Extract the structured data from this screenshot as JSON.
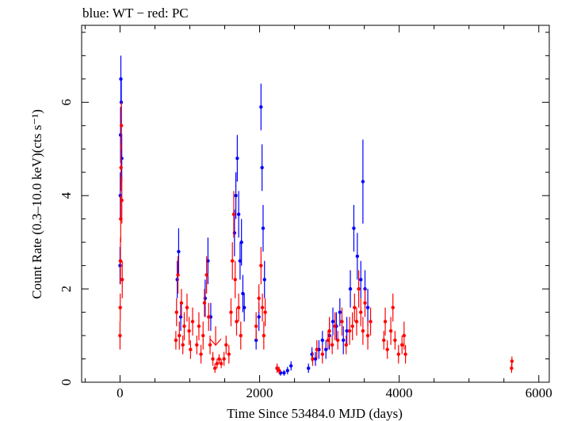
{
  "chart_data": {
    "type": "scatter",
    "title": "blue: WT − red: PC",
    "xlabel": "Time Since 53484.0 MJD (days)",
    "ylabel": "Count Rate (0.3–10.0 keV)(cts s⁻¹)",
    "xlim": [
      -550,
      6150
    ],
    "ylim": [
      0,
      7.65
    ],
    "x_ticks": [
      0,
      2000,
      4000,
      6000
    ],
    "y_ticks": [
      0,
      2,
      4,
      6
    ],
    "x_tick_labels": [
      "0",
      "2000",
      "4000",
      "6000"
    ],
    "y_tick_labels": [
      "0",
      "2",
      "4",
      "6"
    ],
    "grid": false,
    "legend": "none",
    "series": [
      {
        "name": "WT",
        "color": "#0000ff",
        "points": [
          [
            0,
            2.5,
            0.4
          ],
          [
            4,
            4.0,
            0.5
          ],
          [
            8,
            5.3,
            0.6
          ],
          [
            12,
            6.5,
            0.5
          ],
          [
            18,
            6.0,
            0.5
          ],
          [
            25,
            4.8,
            0.5
          ],
          [
            820,
            2.2,
            0.4
          ],
          [
            840,
            2.8,
            0.5
          ],
          [
            870,
            1.4,
            0.3
          ],
          [
            1220,
            1.8,
            0.4
          ],
          [
            1260,
            2.6,
            0.5
          ],
          [
            1300,
            1.4,
            0.3
          ],
          [
            1640,
            3.2,
            0.5
          ],
          [
            1660,
            4.0,
            0.5
          ],
          [
            1680,
            4.8,
            0.5
          ],
          [
            1700,
            3.6,
            0.5
          ],
          [
            1720,
            2.6,
            0.4
          ],
          [
            1740,
            3.0,
            0.5
          ],
          [
            1760,
            1.9,
            0.4
          ],
          [
            1780,
            1.6,
            0.3
          ],
          [
            1950,
            0.9,
            0.2
          ],
          [
            1990,
            1.4,
            0.3
          ],
          [
            2020,
            5.9,
            0.5
          ],
          [
            2035,
            4.6,
            0.5
          ],
          [
            2050,
            3.3,
            0.5
          ],
          [
            2070,
            2.2,
            0.4
          ],
          [
            2250,
            0.3,
            0.08
          ],
          [
            2300,
            0.2,
            0.06
          ],
          [
            2350,
            0.2,
            0.06
          ],
          [
            2400,
            0.25,
            0.08
          ],
          [
            2450,
            0.35,
            0.1
          ],
          [
            2700,
            0.3,
            0.1
          ],
          [
            2750,
            0.6,
            0.15
          ],
          [
            2800,
            0.5,
            0.15
          ],
          [
            2850,
            0.7,
            0.2
          ],
          [
            2900,
            0.9,
            0.2
          ],
          [
            2950,
            0.7,
            0.2
          ],
          [
            3000,
            1.0,
            0.3
          ],
          [
            3050,
            1.3,
            0.3
          ],
          [
            3100,
            1.2,
            0.3
          ],
          [
            3150,
            1.5,
            0.3
          ],
          [
            3200,
            0.9,
            0.3
          ],
          [
            3250,
            1.1,
            0.3
          ],
          [
            3300,
            2.0,
            0.4
          ],
          [
            3350,
            3.3,
            0.5
          ],
          [
            3400,
            2.7,
            0.5
          ],
          [
            3450,
            2.2,
            0.4
          ],
          [
            3480,
            4.3,
            0.9
          ],
          [
            3510,
            2.0,
            0.4
          ],
          [
            3550,
            1.6,
            0.4
          ]
        ]
      },
      {
        "name": "PC",
        "color": "#ff0000",
        "points": [
          [
            0,
            1.0,
            0.3
          ],
          [
            3,
            1.6,
            0.3
          ],
          [
            6,
            2.6,
            0.5
          ],
          [
            10,
            3.5,
            0.5
          ],
          [
            14,
            4.6,
            0.5
          ],
          [
            20,
            5.5,
            0.5
          ],
          [
            26,
            3.9,
            0.5
          ],
          [
            32,
            2.2,
            0.4
          ],
          [
            800,
            0.9,
            0.2
          ],
          [
            810,
            1.5,
            0.3
          ],
          [
            830,
            2.3,
            0.4
          ],
          [
            850,
            1.0,
            0.3
          ],
          [
            880,
            1.7,
            0.3
          ],
          [
            900,
            0.8,
            0.2
          ],
          [
            920,
            1.2,
            0.3
          ],
          [
            960,
            1.6,
            0.3
          ],
          [
            990,
            1.1,
            0.3
          ],
          [
            1010,
            0.7,
            0.2
          ],
          [
            1040,
            1.3,
            0.3
          ],
          [
            1100,
            0.8,
            0.2
          ],
          [
            1130,
            1.2,
            0.3
          ],
          [
            1160,
            0.6,
            0.2
          ],
          [
            1190,
            1.0,
            0.3
          ],
          [
            1210,
            1.7,
            0.3
          ],
          [
            1240,
            2.3,
            0.4
          ],
          [
            1270,
            1.4,
            0.3
          ],
          [
            1290,
            0.8,
            0.2
          ],
          [
            1330,
            0.5,
            0.15
          ],
          [
            1360,
            0.3,
            0.1
          ],
          [
            1390,
            0.4,
            0.1
          ],
          [
            1420,
            0.5,
            0.1
          ],
          [
            1450,
            0.4,
            0.1
          ],
          [
            1490,
            0.5,
            0.15
          ],
          [
            1520,
            0.8,
            0.2
          ],
          [
            1560,
            0.6,
            0.2
          ],
          [
            1590,
            1.5,
            0.3
          ],
          [
            1610,
            2.6,
            0.4
          ],
          [
            1630,
            3.6,
            0.5
          ],
          [
            1650,
            2.2,
            0.4
          ],
          [
            1670,
            1.3,
            0.3
          ],
          [
            1700,
            1.6,
            0.3
          ],
          [
            1730,
            1.0,
            0.3
          ],
          [
            1950,
            1.2,
            0.3
          ],
          [
            1990,
            1.8,
            0.3
          ],
          [
            2020,
            2.5,
            0.4
          ],
          [
            2040,
            1.6,
            0.3
          ],
          [
            2060,
            1.0,
            0.3
          ],
          [
            2080,
            1.5,
            0.3
          ],
          [
            2250,
            0.3,
            0.1
          ],
          [
            2280,
            0.25,
            0.08
          ],
          [
            2760,
            0.5,
            0.15
          ],
          [
            2820,
            0.7,
            0.2
          ],
          [
            2900,
            0.6,
            0.2
          ],
          [
            2980,
            0.9,
            0.2
          ],
          [
            3000,
            1.1,
            0.3
          ],
          [
            3040,
            0.8,
            0.2
          ],
          [
            3080,
            1.2,
            0.3
          ],
          [
            3120,
            0.9,
            0.2
          ],
          [
            3180,
            1.3,
            0.3
          ],
          [
            3240,
            0.8,
            0.2
          ],
          [
            3290,
            1.1,
            0.3
          ],
          [
            3330,
            1.2,
            0.3
          ],
          [
            3360,
            1.6,
            0.3
          ],
          [
            3390,
            1.3,
            0.3
          ],
          [
            3420,
            2.0,
            0.4
          ],
          [
            3450,
            1.5,
            0.3
          ],
          [
            3480,
            1.1,
            0.3
          ],
          [
            3510,
            1.7,
            0.3
          ],
          [
            3550,
            1.0,
            0.3
          ],
          [
            3590,
            1.3,
            0.3
          ],
          [
            3780,
            0.9,
            0.2
          ],
          [
            3800,
            1.3,
            0.3
          ],
          [
            3830,
            0.7,
            0.2
          ],
          [
            3880,
            1.1,
            0.3
          ],
          [
            3910,
            1.6,
            0.3
          ],
          [
            3940,
            0.9,
            0.2
          ],
          [
            3990,
            0.6,
            0.2
          ],
          [
            4040,
            0.8,
            0.2
          ],
          [
            4070,
            1.0,
            0.3
          ],
          [
            4090,
            0.6,
            0.2
          ],
          [
            5610,
            0.3,
            0.1
          ],
          [
            5615,
            0.45,
            0.1
          ]
        ]
      }
    ],
    "annotations": [
      {
        "type": "upper-limit-arrow",
        "series": "PC",
        "x": 1370,
        "y": 1.2
      }
    ]
  }
}
